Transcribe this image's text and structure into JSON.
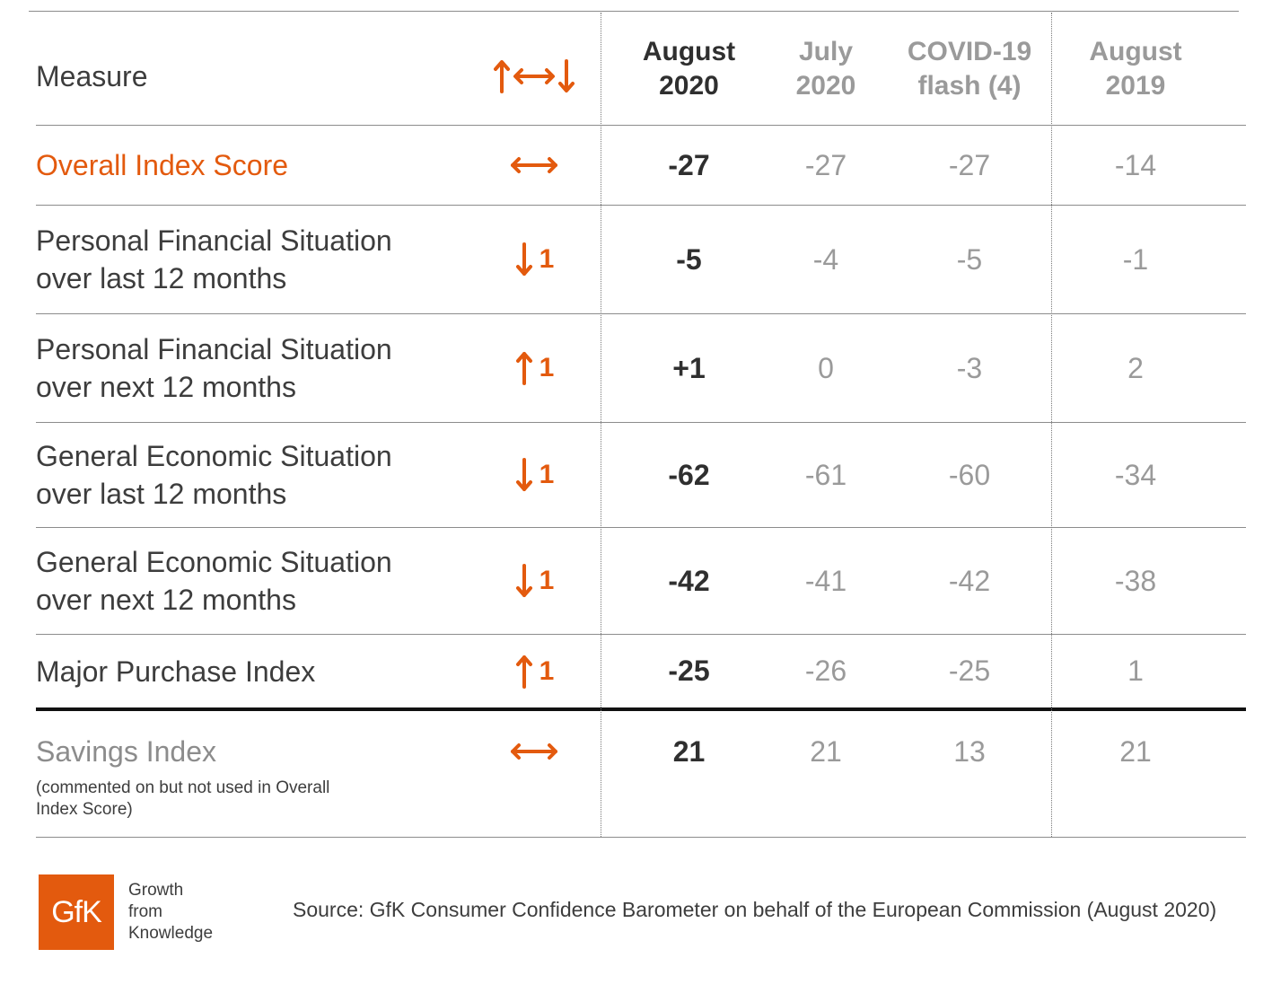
{
  "header": {
    "measure": "Measure",
    "trend_icons": "arrow-up-leftright-down-icon",
    "col_aug2020": [
      "August",
      "2020"
    ],
    "col_jul2020": [
      "July",
      "2020"
    ],
    "col_covid": [
      "COVID-19",
      "flash (4)"
    ],
    "col_aug2019": [
      "August",
      "2019"
    ]
  },
  "rows": [
    {
      "label": [
        "Overall Index Score"
      ],
      "trend": "leftright",
      "change": "",
      "aug2020": "-27",
      "jul2020": "-27",
      "covid": "-27",
      "aug2019": "-14"
    },
    {
      "label": [
        "Personal Financial Situation",
        "over last 12 months"
      ],
      "trend": "down",
      "change": "1",
      "aug2020": "-5",
      "jul2020": "-4",
      "covid": "-5",
      "aug2019": "-1"
    },
    {
      "label": [
        "Personal Financial Situation",
        "over next 12 months"
      ],
      "trend": "up",
      "change": "1",
      "aug2020": "+1",
      "jul2020": "0",
      "covid": "-3",
      "aug2019": "2"
    },
    {
      "label": [
        "General Economic Situation",
        "over last 12 months"
      ],
      "trend": "down",
      "change": "1",
      "aug2020": "-62",
      "jul2020": "-61",
      "covid": "-60",
      "aug2019": "-34"
    },
    {
      "label": [
        "General Economic Situation",
        "over next 12 months"
      ],
      "trend": "down",
      "change": "1",
      "aug2020": "-42",
      "jul2020": "-41",
      "covid": "-42",
      "aug2019": "-38"
    },
    {
      "label": [
        "Major Purchase Index"
      ],
      "trend": "up",
      "change": "1",
      "aug2020": "-25",
      "jul2020": "-26",
      "covid": "-25",
      "aug2019": "1"
    },
    {
      "label": [
        "Savings Index"
      ],
      "trend": "leftright",
      "change": "",
      "aug2020": "21",
      "jul2020": "21",
      "covid": "13",
      "aug2019": "21"
    }
  ],
  "savings_note": "(commented on but not used in Overall Index Score)",
  "footer": {
    "logo_text": "GfK",
    "tagline": [
      "Growth",
      "from",
      "Knowledge"
    ],
    "source": "Source: GfK Consumer Confidence Barometer on behalf of the European Commission (August 2020)"
  },
  "colors": {
    "accent": "#e35a0e",
    "text": "#3d3d3d",
    "muted": "#9a9a9a"
  }
}
